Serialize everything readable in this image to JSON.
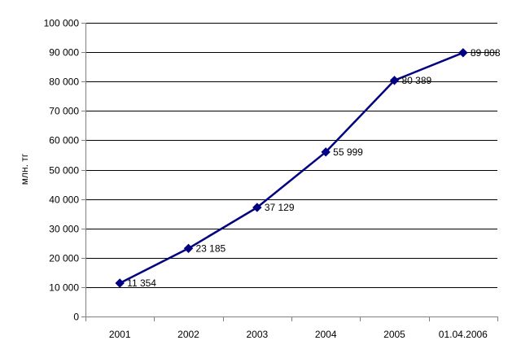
{
  "chart_data": {
    "type": "line",
    "title": "",
    "xlabel": "",
    "ylabel": "млн. тг",
    "categories": [
      "2001",
      "2002",
      "2003",
      "2004",
      "2005",
      "01.04.2006"
    ],
    "series": [
      {
        "values": [
          11354,
          23185,
          37129,
          55999,
          80389,
          89808
        ],
        "value_labels": [
          "11 354",
          "23 185",
          "37 129",
          "55 999",
          "80 389",
          "89 808"
        ]
      }
    ],
    "ylim": [
      0,
      100000
    ],
    "y_ticks": [
      0,
      10000,
      20000,
      30000,
      40000,
      50000,
      60000,
      70000,
      80000,
      90000,
      100000
    ],
    "y_tick_labels": [
      "0",
      "10 000",
      "20 000",
      "30 000",
      "40 000",
      "50 000",
      "60 000",
      "70 000",
      "80 000",
      "90 000",
      "100 000"
    ],
    "grid": true,
    "legend": "none",
    "marker": "diamond",
    "colors": {
      "line": "#000080",
      "marker": "#000080",
      "grid": "#000000",
      "axis": "#808080"
    }
  }
}
